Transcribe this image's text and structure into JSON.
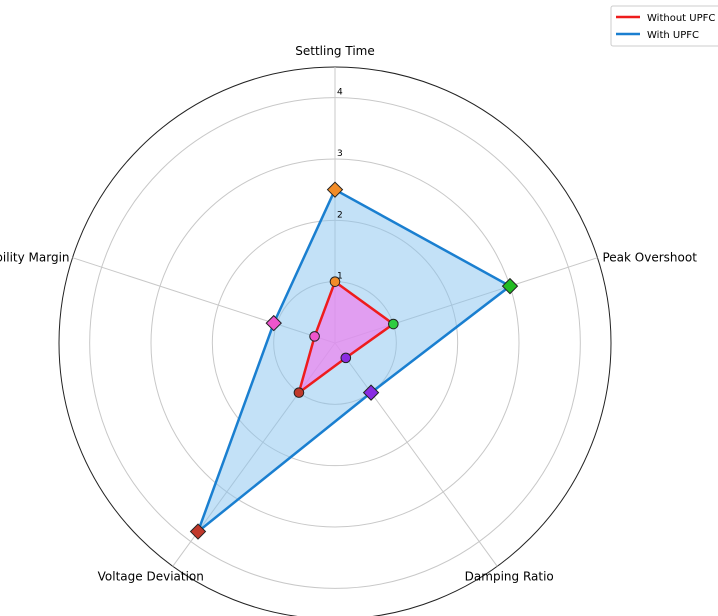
{
  "chart_data": {
    "type": "radar",
    "title": "",
    "categories": [
      "Settling Time",
      "Peak Overshoot",
      "Damping Ratio",
      "Voltage Deviation",
      "Stability Margin"
    ],
    "rlim": [
      0,
      4.5
    ],
    "r_ticks": [
      "1",
      "2",
      "3",
      "4"
    ],
    "grid": true,
    "legend_position": "top-right",
    "series": [
      {
        "name": "Without UPFC",
        "line_color": "#ee1c1c",
        "fill_color": "#ee82ee",
        "marker": "circle",
        "values": [
          1.0,
          1.0,
          0.3,
          1.0,
          0.35
        ],
        "point_colors": [
          "#f28c28",
          "#2ecc40",
          "#8a2be2",
          "#c0392b",
          "#ee55cc"
        ]
      },
      {
        "name": "With UPFC",
        "line_color": "#1a7fd0",
        "fill_color": "#87c3f0",
        "marker": "diamond",
        "values": [
          2.5,
          3.0,
          1.0,
          3.8,
          1.05
        ],
        "point_colors": [
          "#f28c28",
          "#22bb22",
          "#8a2be2",
          "#c0392b",
          "#ee55cc"
        ]
      }
    ]
  }
}
